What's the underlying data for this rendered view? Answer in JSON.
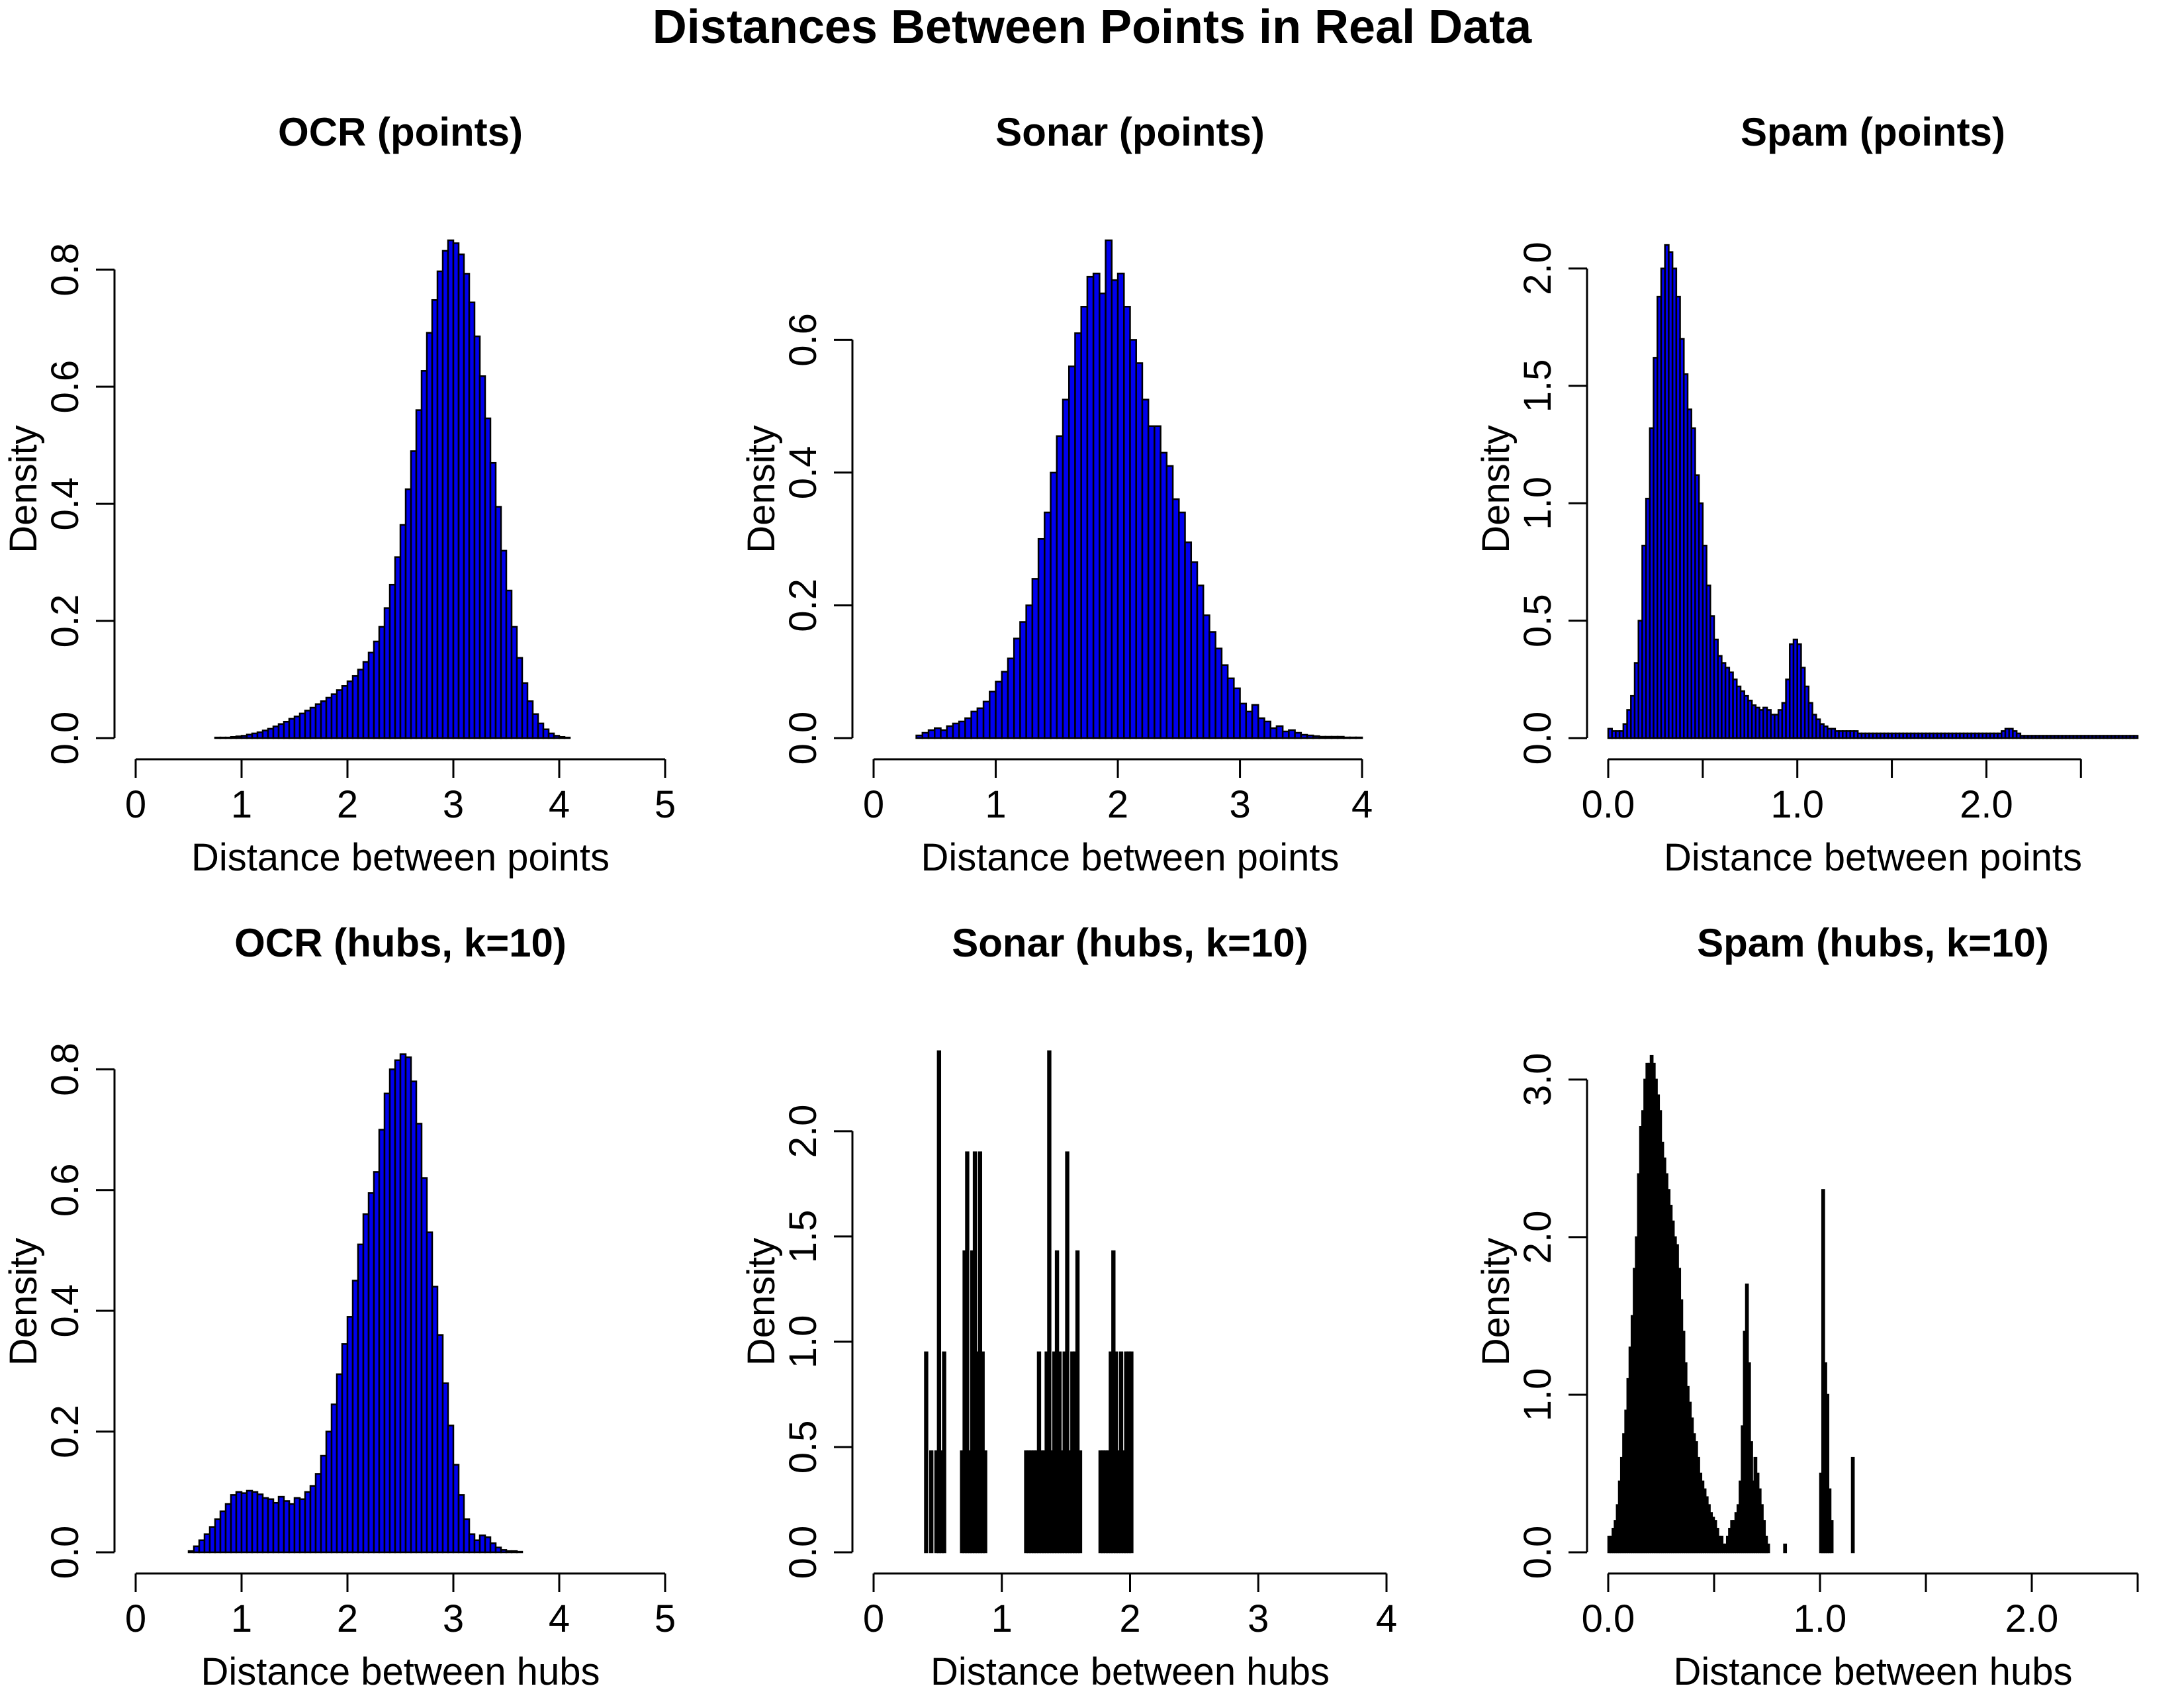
{
  "figure_title": "Distances Between Points in Real Data",
  "chart_data": [
    {
      "type": "bar",
      "title": "OCR (points)",
      "xlabel": "Distance between points",
      "ylabel": "Density",
      "xlim": [
        0,
        5
      ],
      "ylim": [
        0,
        0.85
      ],
      "xticks": [
        0,
        1,
        2,
        3,
        4,
        5
      ],
      "xtick_labels": [
        "0",
        "1",
        "2",
        "3",
        "4",
        "5"
      ],
      "yticks": [
        0,
        0.2,
        0.4,
        0.6,
        0.8
      ],
      "ytick_labels": [
        "0.0",
        "0.2",
        "0.4",
        "0.6",
        "0.8"
      ],
      "bar_color": "#0000ee",
      "bin_width": 0.05,
      "bin_start": 0.3,
      "values": [
        0,
        0,
        0,
        0,
        0,
        0,
        0,
        0,
        0,
        0.001,
        0.001,
        0.001,
        0.002,
        0.003,
        0.004,
        0.006,
        0.008,
        0.01,
        0.013,
        0.016,
        0.02,
        0.024,
        0.028,
        0.033,
        0.037,
        0.042,
        0.047,
        0.052,
        0.058,
        0.063,
        0.069,
        0.075,
        0.082,
        0.089,
        0.097,
        0.106,
        0.117,
        0.13,
        0.146,
        0.165,
        0.19,
        0.222,
        0.262,
        0.309,
        0.364,
        0.425,
        0.49,
        0.56,
        0.627,
        0.692,
        0.748,
        0.797,
        0.832,
        0.85,
        0.845,
        0.826,
        0.793,
        0.744,
        0.686,
        0.618,
        0.546,
        0.47,
        0.395,
        0.32,
        0.252,
        0.19,
        0.137,
        0.094,
        0.063,
        0.041,
        0.025,
        0.015,
        0.008,
        0.004,
        0.002,
        0.001,
        0,
        0,
        0,
        0,
        0,
        0,
        0,
        0,
        0,
        0,
        0,
        0,
        0,
        0,
        0,
        0,
        0,
        0
      ],
      "gridlines": false,
      "legend": "none"
    },
    {
      "type": "bar",
      "title": "Sonar (points)",
      "xlabel": "Distance between points",
      "ylabel": "Density",
      "xlim": [
        0,
        4.2
      ],
      "ylim": [
        0,
        0.75
      ],
      "xticks": [
        0,
        1,
        2,
        3,
        4
      ],
      "xtick_labels": [
        "0",
        "1",
        "2",
        "3",
        "4"
      ],
      "yticks": [
        0,
        0.2,
        0.4,
        0.6
      ],
      "ytick_labels": [
        "0.0",
        "0.2",
        "0.4",
        "0.6"
      ],
      "bar_color": "#0000ee",
      "bin_width": 0.05,
      "bin_start": 0.35,
      "values": [
        0.004,
        0.008,
        0.012,
        0.015,
        0.012,
        0.018,
        0.022,
        0.025,
        0.03,
        0.04,
        0.045,
        0.055,
        0.07,
        0.085,
        0.1,
        0.12,
        0.15,
        0.175,
        0.2,
        0.24,
        0.3,
        0.34,
        0.4,
        0.455,
        0.51,
        0.56,
        0.61,
        0.65,
        0.695,
        0.7,
        0.67,
        0.75,
        0.69,
        0.7,
        0.65,
        0.6,
        0.565,
        0.51,
        0.47,
        0.47,
        0.43,
        0.41,
        0.36,
        0.34,
        0.295,
        0.265,
        0.23,
        0.185,
        0.16,
        0.135,
        0.11,
        0.09,
        0.075,
        0.052,
        0.04,
        0.05,
        0.03,
        0.025,
        0.015,
        0.018,
        0.01,
        0.012,
        0.008,
        0.005,
        0.004,
        0.003,
        0.002,
        0.002,
        0.002,
        0.002,
        0.001,
        0.001,
        0.001
      ],
      "gridlines": false,
      "legend": "none"
    },
    {
      "type": "bar",
      "title": "Spam (points)",
      "xlabel": "Distance between points",
      "ylabel": "Density",
      "xlim": [
        0,
        2.8
      ],
      "ylim": [
        0,
        2.12
      ],
      "xticks": [
        0,
        0.5,
        1,
        1.5,
        2,
        2.5
      ],
      "xtick_labels": [
        "0.0",
        "",
        "1.0",
        "",
        "2.0",
        ""
      ],
      "yticks": [
        0,
        0.5,
        1,
        1.5,
        2
      ],
      "ytick_labels": [
        "0.0",
        "0.5",
        "1.0",
        "1.5",
        "2.0"
      ],
      "bar_color": "#0000ee",
      "bin_width": 0.02,
      "bin_start": 0.0,
      "values": [
        0.04,
        0.03,
        0.03,
        0.03,
        0.06,
        0.12,
        0.18,
        0.32,
        0.5,
        0.82,
        1.02,
        1.32,
        1.62,
        1.88,
        2.0,
        2.1,
        2.07,
        2.0,
        1.88,
        1.7,
        1.55,
        1.4,
        1.32,
        1.12,
        1.0,
        0.82,
        0.65,
        0.52,
        0.42,
        0.35,
        0.32,
        0.3,
        0.28,
        0.25,
        0.22,
        0.2,
        0.18,
        0.16,
        0.14,
        0.13,
        0.12,
        0.13,
        0.12,
        0.1,
        0.1,
        0.12,
        0.15,
        0.25,
        0.4,
        0.42,
        0.4,
        0.3,
        0.22,
        0.15,
        0.1,
        0.08,
        0.06,
        0.05,
        0.04,
        0.04,
        0.03,
        0.03,
        0.03,
        0.03,
        0.03,
        0.03,
        0.02,
        0.02,
        0.02,
        0.02,
        0.02,
        0.02,
        0.02,
        0.02,
        0.02,
        0.02,
        0.02,
        0.02,
        0.02,
        0.02,
        0.02,
        0.02,
        0.02,
        0.02,
        0.02,
        0.02,
        0.02,
        0.02,
        0.02,
        0.02,
        0.02,
        0.02,
        0.02,
        0.02,
        0.02,
        0.02,
        0.02,
        0.02,
        0.02,
        0.02,
        0.02,
        0.02,
        0.02,
        0.02,
        0.03,
        0.04,
        0.04,
        0.03,
        0.02,
        0.01,
        0.01,
        0.01,
        0.01,
        0.01,
        0.01,
        0.01,
        0.01,
        0.01,
        0.01,
        0.01,
        0.01,
        0.01,
        0.01,
        0.01,
        0.01,
        0.01,
        0.01,
        0.01,
        0.01,
        0.01,
        0.01,
        0.01,
        0.01,
        0.01,
        0.01,
        0.01,
        0.01,
        0.01,
        0.01,
        0.01,
        0.01,
        0.01,
        0.01,
        0.01,
        0.01,
        0.01
      ],
      "gridlines": false,
      "legend": "none"
    },
    {
      "type": "bar",
      "title": "OCR (hubs, k=10)",
      "xlabel": "Distance between hubs",
      "ylabel": "Density",
      "xlim": [
        0,
        5
      ],
      "ylim": [
        0,
        0.83
      ],
      "xticks": [
        0,
        1,
        2,
        3,
        4,
        5
      ],
      "xtick_labels": [
        "0",
        "1",
        "2",
        "3",
        "4",
        "5"
      ],
      "yticks": [
        0,
        0.2,
        0.4,
        0.6,
        0.8
      ],
      "ytick_labels": [
        "0.0",
        "0.2",
        "0.4",
        "0.6",
        "0.8"
      ],
      "bar_color": "#0000ee",
      "bin_width": 0.05,
      "bin_start": 0.5,
      "values": [
        0.002,
        0.01,
        0.02,
        0.03,
        0.042,
        0.055,
        0.068,
        0.08,
        0.095,
        0.1,
        0.098,
        0.102,
        0.1,
        0.096,
        0.09,
        0.088,
        0.082,
        0.092,
        0.085,
        0.08,
        0.09,
        0.088,
        0.1,
        0.11,
        0.13,
        0.16,
        0.2,
        0.245,
        0.295,
        0.345,
        0.39,
        0.45,
        0.51,
        0.56,
        0.595,
        0.63,
        0.7,
        0.76,
        0.8,
        0.815,
        0.825,
        0.82,
        0.78,
        0.71,
        0.62,
        0.53,
        0.44,
        0.36,
        0.28,
        0.21,
        0.145,
        0.095,
        0.055,
        0.03,
        0.02,
        0.028,
        0.025,
        0.015,
        0.008,
        0.004,
        0.002,
        0.002,
        0.001
      ],
      "gridlines": false,
      "legend": "none"
    },
    {
      "type": "bar",
      "title": "Sonar (hubs, k=10)",
      "xlabel": "Distance between hubs",
      "ylabel": "Density",
      "xlim": [
        0,
        4
      ],
      "ylim": [
        0,
        2.38
      ],
      "xticks": [
        0,
        1,
        2,
        3,
        4
      ],
      "xtick_labels": [
        "0",
        "1",
        "2",
        "3",
        "4"
      ],
      "yticks": [
        0,
        0.5,
        1,
        1.5,
        2
      ],
      "ytick_labels": [
        "0.0",
        "0.5",
        "1.0",
        "1.5",
        "2.0"
      ],
      "bar_color": "#000000",
      "bin_width": 0.02,
      "bin_start": 0.4,
      "values": [
        0.95,
        0,
        0.48,
        0,
        0.48,
        2.38,
        0.48,
        0.95,
        0,
        0,
        0,
        0,
        0,
        0,
        0.48,
        1.43,
        1.9,
        0.48,
        1.43,
        1.9,
        0.95,
        1.9,
        0.95,
        0.48,
        0,
        0,
        0,
        0,
        0,
        0,
        0,
        0,
        0,
        0,
        0,
        0,
        0,
        0,
        0,
        0.48,
        0.48,
        0.48,
        0.48,
        0.48,
        0.95,
        0.48,
        0.48,
        0.95,
        2.38,
        0.48,
        0.95,
        1.43,
        0.95,
        0.48,
        0.95,
        1.9,
        0.48,
        0.95,
        0.95,
        1.43,
        0.48,
        0,
        0,
        0,
        0,
        0,
        0,
        0,
        0.48,
        0.48,
        0.48,
        0.48,
        0.95,
        1.43,
        0.95,
        0.48,
        0.95,
        0.48,
        0.95,
        0.95,
        0.95
      ],
      "gridlines": false,
      "legend": "none"
    },
    {
      "type": "bar",
      "title": "Spam (hubs, k=10)",
      "xlabel": "Distance between hubs",
      "ylabel": "Density",
      "xlim": [
        0,
        2.5
      ],
      "ylim": [
        0,
        3.18
      ],
      "xticks": [
        0,
        0.5,
        1,
        1.5,
        2,
        2.5
      ],
      "xtick_labels": [
        "0.0",
        "",
        "1.0",
        "",
        "2.0",
        ""
      ],
      "yticks": [
        0,
        1,
        2,
        3
      ],
      "ytick_labels": [
        "0.0",
        "1.0",
        "2.0",
        "3.0"
      ],
      "bar_color": "#000000",
      "bin_width": 0.01,
      "bin_start": 0.0,
      "values": [
        0.1,
        0.1,
        0.15,
        0.2,
        0.3,
        0.45,
        0.6,
        0.75,
        0.9,
        1.1,
        1.3,
        1.5,
        1.8,
        2.0,
        2.4,
        2.7,
        2.8,
        3.0,
        3.1,
        3.1,
        3.15,
        3.1,
        3.0,
        2.9,
        2.8,
        2.6,
        2.5,
        2.4,
        2.3,
        2.2,
        2.1,
        2.0,
        1.95,
        1.8,
        1.6,
        1.4,
        1.2,
        1.05,
        0.95,
        0.85,
        0.75,
        0.7,
        0.6,
        0.5,
        0.45,
        0.4,
        0.35,
        0.3,
        0.25,
        0.22,
        0.2,
        0.15,
        0.1,
        0.1,
        0.05,
        0.05,
        0.1,
        0.15,
        0.2,
        0.2,
        0.25,
        0.3,
        0.45,
        0.8,
        1.4,
        1.7,
        1.2,
        0.7,
        0.45,
        0.6,
        0.5,
        0.4,
        0.3,
        0.2,
        0.1,
        0.05,
        0,
        0,
        0,
        0,
        0,
        0,
        0,
        0.05,
        0,
        0,
        0,
        0,
        0,
        0,
        0,
        0,
        0,
        0,
        0,
        0,
        0,
        0,
        0,
        0,
        0.5,
        2.3,
        1.2,
        1.0,
        0.4,
        0.2,
        0,
        0,
        0,
        0,
        0,
        0,
        0,
        0,
        0,
        0.6
      ],
      "gridlines": false,
      "legend": "none"
    }
  ]
}
